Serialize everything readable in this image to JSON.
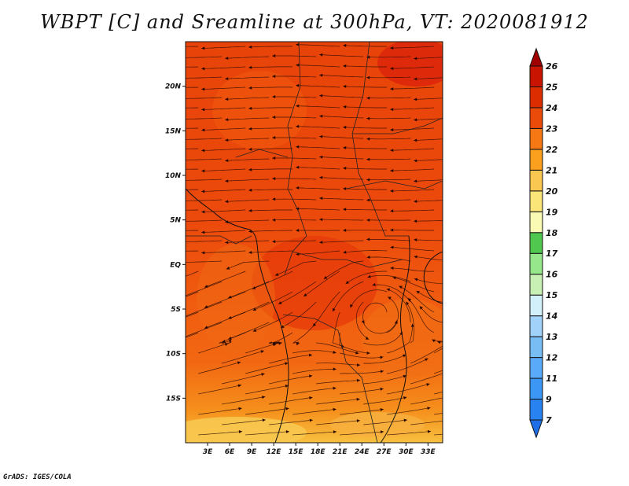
{
  "title": "WBPT [C] and Sreamline at 300hPa, VT: 2020081912",
  "footer": "GrADS: IGES/COLA",
  "map": {
    "lat_labels": [
      {
        "text": "20N",
        "lat": 20
      },
      {
        "text": "15N",
        "lat": 15
      },
      {
        "text": "10N",
        "lat": 10
      },
      {
        "text": "5N",
        "lat": 5
      },
      {
        "text": "EQ",
        "lat": 0
      },
      {
        "text": "5S",
        "lat": -5
      },
      {
        "text": "10S",
        "lat": -10
      },
      {
        "text": "15S",
        "lat": -15
      }
    ],
    "lon_labels": [
      {
        "text": "3E",
        "lon": 3
      },
      {
        "text": "6E",
        "lon": 6
      },
      {
        "text": "9E",
        "lon": 9
      },
      {
        "text": "12E",
        "lon": 12
      },
      {
        "text": "15E",
        "lon": 15
      },
      {
        "text": "18E",
        "lon": 18
      },
      {
        "text": "21E",
        "lon": 21
      },
      {
        "text": "24E",
        "lon": 24
      },
      {
        "text": "27E",
        "lon": 27
      },
      {
        "text": "30E",
        "lon": 30
      },
      {
        "text": "33E",
        "lon": 33
      }
    ]
  },
  "colorbar": {
    "levels": [
      "7",
      "9",
      "11",
      "12",
      "13",
      "14",
      "15",
      "16",
      "17",
      "18",
      "19",
      "20",
      "21",
      "22",
      "23",
      "24",
      "25",
      "26"
    ],
    "colors": [
      "#1e6ee6",
      "#2882f0",
      "#3c96f5",
      "#5aaafa",
      "#78bef5",
      "#a0d2fa",
      "#d2f0fa",
      "#c8f0b4",
      "#96e68c",
      "#50c850",
      "#fafab4",
      "#fae678",
      "#fac850",
      "#faa01e",
      "#f57814",
      "#eb4b0a",
      "#dc2d00",
      "#c81400",
      "#a00000"
    ]
  }
}
